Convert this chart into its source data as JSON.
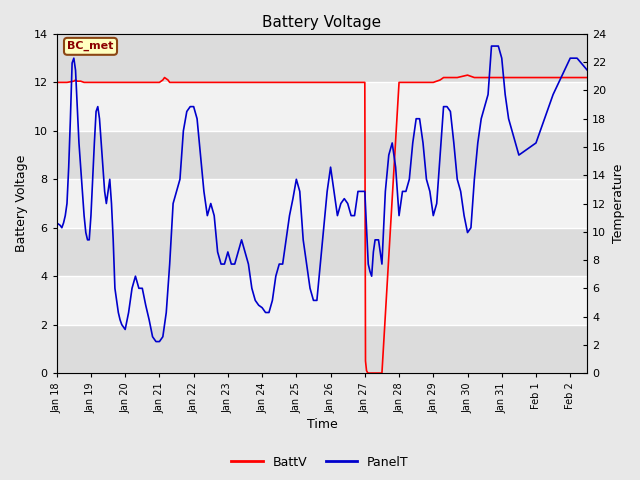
{
  "title": "Battery Voltage",
  "xlabel": "Time",
  "ylabel_left": "Battery Voltage",
  "ylabel_right": "Temperature",
  "xlim": [
    0,
    15.5
  ],
  "ylim_left": [
    0,
    14
  ],
  "ylim_right": [
    0,
    24
  ],
  "yticks_left": [
    0,
    2,
    4,
    6,
    8,
    10,
    12,
    14
  ],
  "yticks_right": [
    0,
    2,
    4,
    6,
    8,
    10,
    12,
    14,
    16,
    18,
    20,
    22,
    24
  ],
  "xtick_labels": [
    "Jan 18",
    "Jan 19",
    "Jan 20",
    "Jan 21",
    "Jan 22",
    "Jan 23",
    "Jan 24",
    "Jan 25",
    "Jan 26",
    "Jan 27",
    "Jan 28",
    "Jan 29",
    "Jan 30",
    "Jan 31",
    "Feb 1",
    "Feb 2"
  ],
  "xtick_positions": [
    0,
    1,
    2,
    3,
    4,
    5,
    6,
    7,
    8,
    9,
    10,
    11,
    12,
    13,
    14,
    15
  ],
  "fig_bg_color": "#e8e8e8",
  "plot_bg_light": "#f2f2f2",
  "plot_bg_dark": "#dcdcdc",
  "grid_color": "#ffffff",
  "annotation_label": "BC_met",
  "annotation_box_color": "#ffffc0",
  "annotation_border_color": "#8B4513",
  "annotation_text_color": "#8B0000",
  "battv_color": "#ff0000",
  "panelt_color": "#0000cc",
  "line_width": 1.2,
  "battv_x": [
    0.0,
    0.05,
    0.1,
    0.2,
    0.3,
    0.5,
    0.55,
    0.6,
    0.65,
    0.7,
    0.8,
    1.0,
    1.5,
    2.0,
    2.5,
    3.0,
    3.1,
    3.15,
    3.2,
    3.25,
    3.3,
    3.5,
    4.0,
    4.5,
    5.0,
    5.5,
    6.0,
    6.5,
    7.0,
    7.5,
    8.0,
    8.5,
    8.9,
    9.0,
    9.02,
    9.05,
    9.08,
    9.1,
    9.15,
    9.2,
    9.5,
    10.0,
    10.5,
    11.0,
    11.2,
    11.3,
    11.4,
    11.5,
    11.6,
    11.7,
    12.0,
    12.1,
    12.2,
    12.5,
    13.0,
    13.5,
    14.0,
    14.5,
    15.0,
    15.5
  ],
  "battv_y": [
    12.0,
    12.0,
    12.0,
    12.0,
    12.0,
    12.05,
    12.1,
    12.05,
    12.05,
    12.05,
    12.0,
    12.0,
    12.0,
    12.0,
    12.0,
    12.0,
    12.1,
    12.2,
    12.15,
    12.1,
    12.0,
    12.0,
    12.0,
    12.0,
    12.0,
    12.0,
    12.0,
    12.0,
    12.0,
    12.0,
    12.0,
    12.0,
    12.0,
    12.0,
    0.5,
    0.1,
    0.02,
    0.0,
    0.0,
    0.0,
    0.0,
    12.0,
    12.0,
    12.0,
    12.1,
    12.2,
    12.2,
    12.2,
    12.2,
    12.2,
    12.3,
    12.25,
    12.2,
    12.2,
    12.2,
    12.2,
    12.2,
    12.2,
    12.2,
    12.2
  ],
  "panelt_x": [
    0.0,
    0.1,
    0.15,
    0.2,
    0.25,
    0.3,
    0.35,
    0.4,
    0.45,
    0.5,
    0.55,
    0.6,
    0.65,
    0.7,
    0.75,
    0.8,
    0.85,
    0.9,
    0.95,
    1.0,
    1.05,
    1.1,
    1.15,
    1.2,
    1.25,
    1.3,
    1.35,
    1.4,
    1.45,
    1.5,
    1.55,
    1.6,
    1.65,
    1.7,
    1.75,
    1.8,
    1.85,
    1.9,
    1.95,
    2.0,
    2.1,
    2.2,
    2.3,
    2.4,
    2.5,
    2.6,
    2.7,
    2.8,
    2.9,
    3.0,
    3.1,
    3.2,
    3.3,
    3.4,
    3.5,
    3.6,
    3.7,
    3.8,
    3.9,
    4.0,
    4.1,
    4.2,
    4.3,
    4.4,
    4.5,
    4.6,
    4.7,
    4.8,
    4.9,
    5.0,
    5.1,
    5.2,
    5.3,
    5.4,
    5.5,
    5.6,
    5.7,
    5.8,
    5.9,
    6.0,
    6.1,
    6.2,
    6.3,
    6.4,
    6.5,
    6.6,
    6.7,
    6.8,
    6.9,
    7.0,
    7.1,
    7.2,
    7.3,
    7.4,
    7.5,
    7.6,
    7.7,
    7.8,
    7.9,
    8.0,
    8.1,
    8.2,
    8.3,
    8.4,
    8.5,
    8.6,
    8.7,
    8.8,
    8.9,
    9.0,
    9.1,
    9.15,
    9.2,
    9.25,
    9.3,
    9.4,
    9.5,
    9.6,
    9.7,
    9.8,
    9.9,
    10.0,
    10.1,
    10.2,
    10.3,
    10.4,
    10.5,
    10.6,
    10.7,
    10.8,
    10.9,
    11.0,
    11.1,
    11.2,
    11.3,
    11.4,
    11.5,
    11.6,
    11.7,
    11.8,
    11.9,
    12.0,
    12.1,
    12.2,
    12.3,
    12.4,
    12.5,
    12.6,
    12.7,
    12.8,
    12.9,
    13.0,
    13.1,
    13.2,
    13.5,
    14.0,
    14.5,
    15.0,
    15.2,
    15.5
  ],
  "panelt_y": [
    6.2,
    6.1,
    6.0,
    6.2,
    6.5,
    7.0,
    8.5,
    10.5,
    12.8,
    13.0,
    12.5,
    11.0,
    9.5,
    8.5,
    7.5,
    6.5,
    5.8,
    5.5,
    5.5,
    6.5,
    8.0,
    9.5,
    10.8,
    11.0,
    10.5,
    9.5,
    8.5,
    7.5,
    7.0,
    7.5,
    8.0,
    7.0,
    5.5,
    3.5,
    3.0,
    2.5,
    2.2,
    2.0,
    1.9,
    1.8,
    2.5,
    3.5,
    4.0,
    3.5,
    3.5,
    2.8,
    2.2,
    1.5,
    1.3,
    1.3,
    1.5,
    2.5,
    4.5,
    7.0,
    7.5,
    8.0,
    10.0,
    10.8,
    11.0,
    11.0,
    10.5,
    9.0,
    7.5,
    6.5,
    7.0,
    6.5,
    5.0,
    4.5,
    4.5,
    5.0,
    4.5,
    4.5,
    5.0,
    5.5,
    5.0,
    4.5,
    3.5,
    3.0,
    2.8,
    2.7,
    2.5,
    2.5,
    3.0,
    4.0,
    4.5,
    4.5,
    5.5,
    6.5,
    7.2,
    8.0,
    7.5,
    5.5,
    4.5,
    3.5,
    3.0,
    3.0,
    4.5,
    6.0,
    7.5,
    8.5,
    7.5,
    6.5,
    7.0,
    7.2,
    7.0,
    6.5,
    6.5,
    7.5,
    7.5,
    7.5,
    4.5,
    4.2,
    4.0,
    5.0,
    5.5,
    5.5,
    4.5,
    7.5,
    9.0,
    9.5,
    8.5,
    6.5,
    7.5,
    7.5,
    8.0,
    9.5,
    10.5,
    10.5,
    9.5,
    8.0,
    7.5,
    6.5,
    7.0,
    9.0,
    11.0,
    11.0,
    10.8,
    9.5,
    8.0,
    7.5,
    6.5,
    5.8,
    6.0,
    8.0,
    9.5,
    10.5,
    11.0,
    11.5,
    13.5,
    13.5,
    13.5,
    13.0,
    11.5,
    10.5,
    9.0,
    9.5,
    11.5,
    13.0,
    13.0,
    12.5
  ],
  "band_pairs": [
    [
      0,
      2
    ],
    [
      4,
      6
    ],
    [
      8,
      10
    ],
    [
      12,
      14
    ]
  ],
  "band_light_color": "#f2f2f2",
  "band_dark_color": "#dcdcdc"
}
